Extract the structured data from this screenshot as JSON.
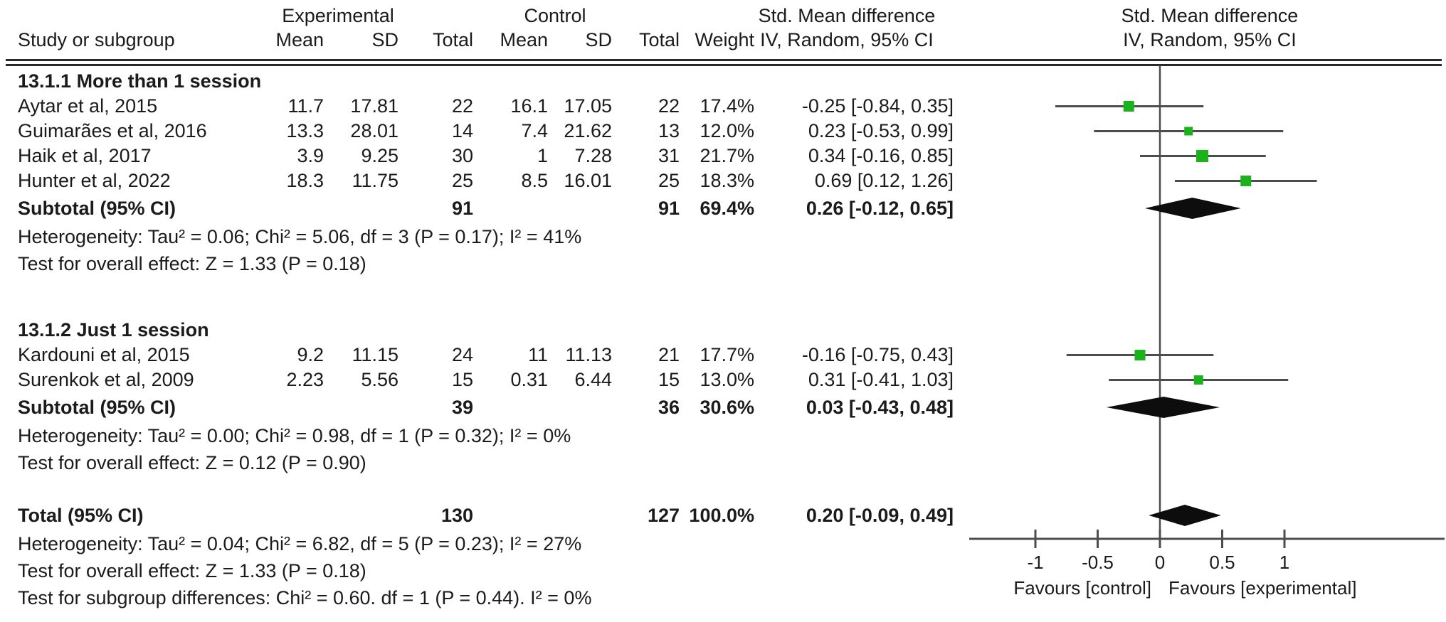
{
  "figure": {
    "header": {
      "col_study": "Study or subgroup",
      "group1": "Experimental",
      "group2": "Control",
      "col_mean1": "Mean",
      "col_sd1": "SD",
      "col_total1": "Total",
      "col_mean2": "Mean",
      "col_sd2": "SD",
      "col_total2": "Total",
      "col_weight": "Weight",
      "effect_title": "Std. Mean difference",
      "effect_subtitle": "IV, Random, 95% CI",
      "plot_title": "Std. Mean difference",
      "plot_subtitle": "IV, Random, 95% CI"
    }
  },
  "chart_data": {
    "type": "scatter",
    "chart_kind": "forest-plot",
    "effect_measure": "Std. Mean difference IV, Random, 95% CI",
    "marker_color": "#1CB21C",
    "line_color": "#4d4d4d",
    "diamond_color": "#0d0d0d",
    "axis": {
      "ticks": [
        -1,
        -0.5,
        0,
        0.5,
        1
      ],
      "xlim": [
        -1.5,
        2.3
      ],
      "label_left": "Favours [control]",
      "label_right": "Favours [experimental]"
    },
    "subgroups": [
      {
        "label": "13.1.1 More than 1 session",
        "studies": [
          {
            "study": "Aytar et al, 2015",
            "mean_e": "11.7",
            "sd_e": "17.81",
            "total_e": "22",
            "mean_c": "16.1",
            "sd_c": "17.05",
            "total_c": "22",
            "weight": "17.4%",
            "weight_pct": 17.4,
            "ci_text": "-0.25 [-0.84, 0.35]",
            "est": -0.25,
            "lo": -0.84,
            "hi": 0.35
          },
          {
            "study": "Guimarães et al, 2016",
            "mean_e": "13.3",
            "sd_e": "28.01",
            "total_e": "14",
            "mean_c": "7.4",
            "sd_c": "21.62",
            "total_c": "13",
            "weight": "12.0%",
            "weight_pct": 12.0,
            "ci_text": "0.23 [-0.53, 0.99]",
            "est": 0.23,
            "lo": -0.53,
            "hi": 0.99
          },
          {
            "study": "Haik et al, 2017",
            "mean_e": "3.9",
            "sd_e": "9.25",
            "total_e": "30",
            "mean_c": "1",
            "sd_c": "7.28",
            "total_c": "31",
            "weight": "21.7%",
            "weight_pct": 21.7,
            "ci_text": "0.34 [-0.16, 0.85]",
            "est": 0.34,
            "lo": -0.16,
            "hi": 0.85
          },
          {
            "study": "Hunter et al, 2022",
            "mean_e": "18.3",
            "sd_e": "11.75",
            "total_e": "25",
            "mean_c": "8.5",
            "sd_c": "16.01",
            "total_c": "25",
            "weight": "18.3%",
            "weight_pct": 18.3,
            "ci_text": "0.69 [0.12, 1.26]",
            "est": 0.69,
            "lo": 0.12,
            "hi": 1.26
          }
        ],
        "subtotal": {
          "study": "Subtotal (95% CI)",
          "total_e": "91",
          "total_c": "91",
          "weight": "69.4%",
          "ci_text": "0.26 [-0.12, 0.65]",
          "est": 0.26,
          "lo": -0.12,
          "hi": 0.65
        },
        "heterogeneity": "Heterogeneity: Tau² = 0.06; Chi² = 5.06, df = 3 (P = 0.17); I² = 41%",
        "overall_effect": "Test for overall effect: Z = 1.33 (P = 0.18)"
      },
      {
        "label": "13.1.2 Just 1 session",
        "studies": [
          {
            "study": "Kardouni et al, 2015",
            "mean_e": "9.2",
            "sd_e": "11.15",
            "total_e": "24",
            "mean_c": "11",
            "sd_c": "11.13",
            "total_c": "21",
            "weight": "17.7%",
            "weight_pct": 17.7,
            "ci_text": "-0.16 [-0.75, 0.43]",
            "est": -0.16,
            "lo": -0.75,
            "hi": 0.43
          },
          {
            "study": "Surenkok et al, 2009",
            "mean_e": "2.23",
            "sd_e": "5.56",
            "total_e": "15",
            "mean_c": "0.31",
            "sd_c": "6.44",
            "total_c": "15",
            "weight": "13.0%",
            "weight_pct": 13.0,
            "ci_text": "0.31 [-0.41, 1.03]",
            "est": 0.31,
            "lo": -0.41,
            "hi": 1.03
          }
        ],
        "subtotal": {
          "study": "Subtotal (95% CI)",
          "total_e": "39",
          "total_c": "36",
          "weight": "30.6%",
          "ci_text": "0.03 [-0.43, 0.48]",
          "est": 0.03,
          "lo": -0.43,
          "hi": 0.48
        },
        "heterogeneity": "Heterogeneity: Tau² = 0.00; Chi² = 0.98, df = 1 (P = 0.32); I² = 0%",
        "overall_effect": "Test for overall effect: Z = 0.12 (P = 0.90)"
      }
    ],
    "total": {
      "study": "Total (95% CI)",
      "total_e": "130",
      "total_c": "127",
      "weight": "100.0%",
      "ci_text": "0.20 [-0.09, 0.49]",
      "est": 0.2,
      "lo": -0.09,
      "hi": 0.49
    },
    "total_heterogeneity": "Heterogeneity: Tau² = 0.04; Chi² = 6.82, df = 5 (P = 0.23); I² = 27%",
    "total_overall_effect": "Test for overall effect: Z = 1.33 (P = 0.18)",
    "subgroup_differences": "Test for subgroup differences: Chi² = 0.60. df = 1 (P = 0.44). I² = 0%"
  }
}
